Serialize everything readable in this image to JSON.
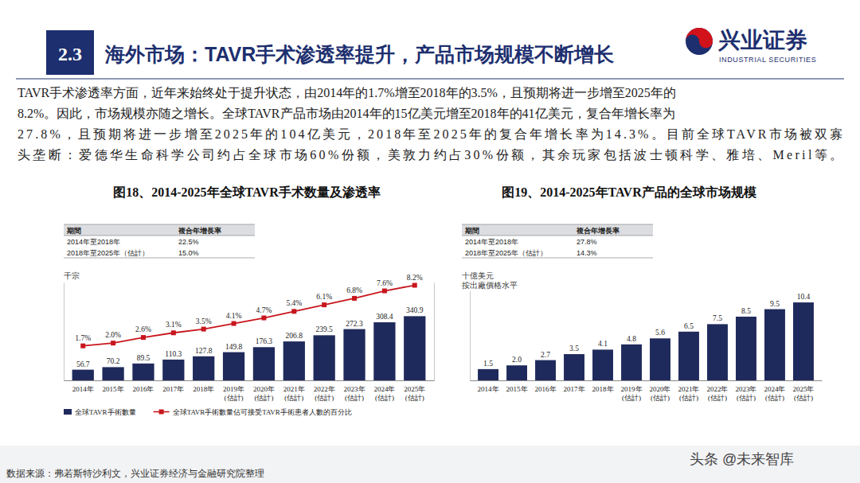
{
  "header": {
    "section": "2.3",
    "title": "海外市场：TAVR手术渗透率提升，产品市场规模不断增长",
    "logo": "兴业证券",
    "logo_subtitle": "INDUSTRIAL SECURITIES"
  },
  "paragraph": [
    "TAVR手术渗透率方面，近年来始终处于提升状态，由2014年的1.7%增至2018年的3.5%，且预期将进一步增至2025年的",
    "8.2%。因此，市场规模亦随之增长。全球TAVR产品市场由2014年的15亿美元增至2018年的41亿美元，复合年增长率为",
    "27.8%，且预期将进一步增至2025年的104亿美元，2018年至2025年的复合年增长率为14.3%。目前全球TAVR市场被双寡",
    "头垄断：爱德华生命科学公司约占全球市场60%份额，美敦力约占30%份额，其余玩家包括波士顿科学、雅培、Meril等。"
  ],
  "footer": {
    "source": "数据来源：弗若斯特沙利文，兴业证券经济与金融研究院整理",
    "watermark": "头条 @未来智库"
  },
  "chart_data": [
    {
      "type": "bar",
      "title": "图18、2014-2025年全球TAVR手术数量及渗透率",
      "unit_label": [
        "千宗"
      ],
      "cagr_table": {
        "header": [
          "期間",
          "複合年增長率"
        ],
        "rows": [
          [
            "2014年至2018年",
            "22.5%"
          ],
          [
            "2018年至2025年（估計）",
            "15.0%"
          ]
        ]
      },
      "categories": [
        "2014年",
        "2015年",
        "2016年",
        "2017年",
        "2018年",
        "2019年(估計)",
        "2020年(估計)",
        "2021年(估計)",
        "2022年(估計)",
        "2023年(估計)",
        "2024年(估計)",
        "2025年(估計)"
      ],
      "series": [
        {
          "name": "全球TAVR手術數量",
          "type": "bar",
          "color": "#1f2a5c",
          "values": [
            56.7,
            70.2,
            89.5,
            110.3,
            127.8,
            149.8,
            176.3,
            206.8,
            239.5,
            272.3,
            308.4,
            340.9
          ],
          "value_labels": [
            "56.7",
            "70.2",
            "89.5",
            "110.3",
            "127.8",
            "149.8",
            "176.3",
            "206.8",
            "239.5",
            "272.3",
            "308.4",
            "340.9"
          ]
        },
        {
          "name": "全球TAVR手術數量佔可接受TAVR手術患者人數的百分比",
          "type": "line",
          "axis": "y2",
          "color": "#c8161d",
          "marker": "square",
          "values": [
            1.7,
            2.0,
            2.6,
            3.1,
            3.5,
            4.1,
            4.7,
            5.4,
            6.1,
            6.8,
            7.6,
            8.2
          ],
          "value_labels": [
            "1.7%",
            "2.0%",
            "2.6%",
            "3.1%",
            "3.5%",
            "4.1%",
            "4.7%",
            "5.4%",
            "6.1%",
            "6.8%",
            "7.6%",
            "8.2%"
          ]
        }
      ],
      "ylim": [
        0,
        520
      ],
      "y2lim": [
        -2,
        8.5
      ],
      "tick_labels": "x",
      "data_labels": true,
      "legend": "bottom"
    },
    {
      "type": "bar",
      "title": "图19、2014-2025年TAVR产品的全球市场规模",
      "unit_label": [
        "十億美元",
        "按出廠價格水平"
      ],
      "cagr_table": {
        "header": [
          "期間",
          "複合年增長率"
        ],
        "rows": [
          [
            "2014年至2018年",
            "27.8%"
          ],
          [
            "2018年至2025年（估計）",
            "14.3%"
          ]
        ]
      },
      "categories": [
        "2014年",
        "2015年",
        "2016年",
        "2017年",
        "2018年",
        "2019年(估計)",
        "2020年(估計)",
        "2021年(估計)",
        "2022年(估計)",
        "2023年(估計)",
        "2024年(估計)",
        "2025年(估計)"
      ],
      "values": [
        1.5,
        2.0,
        2.7,
        3.5,
        4.1,
        4.8,
        5.6,
        6.5,
        7.5,
        8.5,
        9.5,
        10.4
      ],
      "value_labels": [
        "1.5",
        "2.0",
        "2.7",
        "3.5",
        "4.1",
        "4.8",
        "5.6",
        "6.5",
        "7.5",
        "8.5",
        "9.5",
        "10.4"
      ],
      "color": "#1f2a5c",
      "ylim": [
        0,
        12
      ],
      "tick_labels": "x",
      "data_labels": true
    }
  ]
}
